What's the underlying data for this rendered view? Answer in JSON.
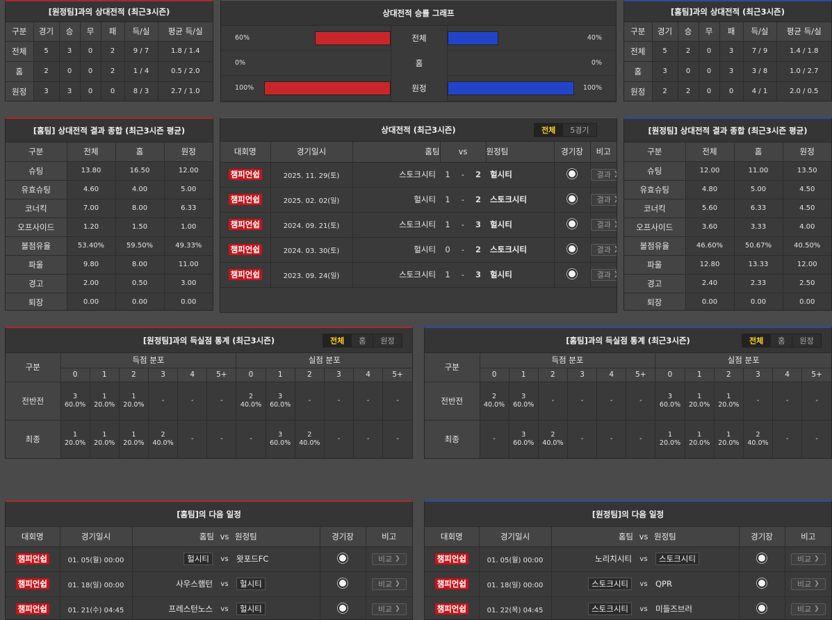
{
  "away_h2h": {
    "title": "[원정팀]과의 상대전적 (최근3시즌)",
    "headers": [
      "구분",
      "경기",
      "승",
      "무",
      "패",
      "득/실",
      "평균 득/실"
    ],
    "rows": [
      [
        "전체",
        "5",
        "3",
        "0",
        "2",
        "9 / 7",
        "1.8 / 1.4"
      ],
      [
        "홈",
        "2",
        "0",
        "0",
        "2",
        "1 / 4",
        "0.5 / 2.0"
      ],
      [
        "원정",
        "3",
        "3",
        "0",
        "0",
        "8 / 3",
        "2.7 / 1.0"
      ]
    ]
  },
  "home_h2h": {
    "title": "[홈팀]과의 상대전적 (최근3시즌)",
    "headers": [
      "구분",
      "경기",
      "승",
      "무",
      "패",
      "득/실",
      "평균 득/실"
    ],
    "rows": [
      [
        "전체",
        "5",
        "2",
        "0",
        "3",
        "7 / 9",
        "1.4 / 1.8"
      ],
      [
        "홈",
        "3",
        "0",
        "0",
        "3",
        "3 / 8",
        "1.0 / 2.7"
      ],
      [
        "원정",
        "2",
        "2",
        "0",
        "0",
        "4 / 1",
        "2.0 / 0.5"
      ]
    ]
  },
  "graph": {
    "title": "상대전적 승률 그래프",
    "colors": {
      "left": "#c9262b",
      "right": "#2245c8"
    },
    "rows": [
      {
        "label": "전체",
        "left_pct": 60,
        "right_pct": 40,
        "left_text": "60%",
        "right_text": "40%"
      },
      {
        "label": "홈",
        "left_pct": 0,
        "right_pct": 0,
        "left_text": "0%",
        "right_text": "0%"
      },
      {
        "label": "원정",
        "left_pct": 100,
        "right_pct": 100,
        "left_text": "100%",
        "right_text": "100%"
      }
    ]
  },
  "home_summary": {
    "title": "[홈팀] 상대전적 결과 종합 (최근3시즌 평균)",
    "headers": [
      "구분",
      "전체",
      "홈",
      "원정"
    ],
    "rows": [
      [
        "슈팅",
        "13.80",
        "16.50",
        "12.00"
      ],
      [
        "유효슈팅",
        "4.60",
        "4.00",
        "5.00"
      ],
      [
        "코너킥",
        "7.00",
        "8.00",
        "6.33"
      ],
      [
        "오프사이드",
        "1.20",
        "1.50",
        "1.00"
      ],
      [
        "볼점유율",
        "53.40%",
        "59.50%",
        "49.33%"
      ],
      [
        "파울",
        "9.80",
        "8.00",
        "11.00"
      ],
      [
        "경고",
        "2.00",
        "0.50",
        "3.00"
      ],
      [
        "퇴장",
        "0.00",
        "0.00",
        "0.00"
      ]
    ]
  },
  "away_summary": {
    "title": "[원정팀] 상대전적 결과 종합 (최근3시즌 평균)",
    "headers": [
      "구분",
      "전체",
      "홈",
      "원정"
    ],
    "rows": [
      [
        "슈팅",
        "12.00",
        "11.00",
        "13.50"
      ],
      [
        "유효슈팅",
        "4.80",
        "5.00",
        "4.50"
      ],
      [
        "코너킥",
        "5.60",
        "6.33",
        "4.50"
      ],
      [
        "오프사이드",
        "3.60",
        "3.33",
        "4.00"
      ],
      [
        "볼점유율",
        "46.60%",
        "50.67%",
        "40.50%"
      ],
      [
        "파울",
        "12.80",
        "13.33",
        "12.00"
      ],
      [
        "경고",
        "2.40",
        "2.33",
        "2.50"
      ],
      [
        "퇴장",
        "0.00",
        "0.00",
        "0.00"
      ]
    ]
  },
  "matches": {
    "title": "상대전적 (최근3시즌)",
    "tabs": [
      "전체",
      "5경기"
    ],
    "headers": {
      "league": "대회명",
      "date": "경기일시",
      "home": "홈팀",
      "vs": "vs",
      "away": "원정팀",
      "venue": "경기장",
      "note": "비고"
    },
    "result_btn": "결과",
    "rows": [
      {
        "league": "챔피언쉽",
        "date": "2025. 11. 29(토)",
        "home": "스토크시티",
        "hs": "1",
        "as": "2",
        "away": "헐시티",
        "winner": "away"
      },
      {
        "league": "챔피언쉽",
        "date": "2025. 02. 02(일)",
        "home": "헐시티",
        "hs": "1",
        "as": "2",
        "away": "스토크시티",
        "winner": "away"
      },
      {
        "league": "챔피언쉽",
        "date": "2024. 09. 21(토)",
        "home": "스토크시티",
        "hs": "1",
        "as": "3",
        "away": "헐시티",
        "winner": "away"
      },
      {
        "league": "챔피언쉽",
        "date": "2024. 03. 30(토)",
        "home": "헐시티",
        "hs": "0",
        "as": "2",
        "away": "스토크시티",
        "winner": "away"
      },
      {
        "league": "챔피언쉽",
        "date": "2023. 09. 24(일)",
        "home": "스토크시티",
        "hs": "1",
        "as": "3",
        "away": "헐시티",
        "winner": "away"
      }
    ]
  },
  "goal_away": {
    "title": "[원정팀]과의 득실점 통계 (최근3시즌)",
    "tabs": [
      "전체",
      "홈",
      "원정"
    ],
    "label": "구분",
    "scored": "득점 분포",
    "conceded": "실점 분포",
    "cols": [
      "0",
      "1",
      "2",
      "3",
      "4",
      "5+"
    ],
    "rows": [
      {
        "label": "전반전",
        "cells": [
          [
            "3",
            "60.0%"
          ],
          [
            "1",
            "20.0%"
          ],
          [
            "1",
            "20.0%"
          ],
          [
            "-"
          ],
          [
            "-"
          ],
          [
            "-"
          ],
          [
            "2",
            "40.0%"
          ],
          [
            "3",
            "60.0%"
          ],
          [
            "-"
          ],
          [
            "-"
          ],
          [
            "-"
          ],
          [
            "-"
          ]
        ]
      },
      {
        "label": "최종",
        "cells": [
          [
            "1",
            "20.0%"
          ],
          [
            "1",
            "20.0%"
          ],
          [
            "1",
            "20.0%"
          ],
          [
            "2",
            "40.0%"
          ],
          [
            "-"
          ],
          [
            "-"
          ],
          [
            "-"
          ],
          [
            "3",
            "60.0%"
          ],
          [
            "2",
            "40.0%"
          ],
          [
            "-"
          ],
          [
            "-"
          ],
          [
            "-"
          ]
        ]
      }
    ]
  },
  "goal_home": {
    "title": "[홈팀]과의 득실점 통계 (최근3시즌)",
    "tabs": [
      "전체",
      "홈",
      "원정"
    ],
    "label": "구분",
    "scored": "득점 분포",
    "conceded": "실점 분포",
    "cols": [
      "0",
      "1",
      "2",
      "3",
      "4",
      "5+"
    ],
    "rows": [
      {
        "label": "전반전",
        "cells": [
          [
            "2",
            "40.0%"
          ],
          [
            "3",
            "60.0%"
          ],
          [
            "-"
          ],
          [
            "-"
          ],
          [
            "-"
          ],
          [
            "-"
          ],
          [
            "3",
            "60.0%"
          ],
          [
            "1",
            "20.0%"
          ],
          [
            "1",
            "20.0%"
          ],
          [
            "-"
          ],
          [
            "-"
          ],
          [
            "-"
          ]
        ]
      },
      {
        "label": "최종",
        "cells": [
          [
            "-"
          ],
          [
            "3",
            "60.0%"
          ],
          [
            "2",
            "40.0%"
          ],
          [
            "-"
          ],
          [
            "-"
          ],
          [
            "-"
          ],
          [
            "1",
            "20.0%"
          ],
          [
            "1",
            "20.0%"
          ],
          [
            "1",
            "20.0%"
          ],
          [
            "2",
            "40.0%"
          ],
          [
            "-"
          ],
          [
            "-"
          ]
        ]
      }
    ]
  },
  "next_home": {
    "title": "[홈팀]의 다음 일정",
    "headers": {
      "league": "대회명",
      "date": "경기일시",
      "home": "홈팀",
      "vs": "vs",
      "away": "원정팀",
      "venue": "경기장",
      "note": "비고"
    },
    "btn": "비교",
    "rows": [
      {
        "league": "챔피언쉽",
        "date": "01. 05(월) 00:00",
        "home": "헐시티",
        "away": "왓포드FC",
        "mark": "home"
      },
      {
        "league": "챔피언쉽",
        "date": "01. 18(일) 00:00",
        "home": "사우스햄턴",
        "away": "헐시티",
        "mark": "away"
      },
      {
        "league": "챔피언쉽",
        "date": "01. 21(수) 04:45",
        "home": "프레스턴노스",
        "away": "헐시티",
        "mark": "away"
      }
    ]
  },
  "next_away": {
    "title": "[원정팀]의 다음 일정",
    "headers": {
      "league": "대회명",
      "date": "경기일시",
      "home": "홈팀",
      "vs": "vs",
      "away": "원정팀",
      "venue": "경기장",
      "note": "비고"
    },
    "btn": "비교",
    "rows": [
      {
        "league": "챔피언쉽",
        "date": "01. 05(월) 00:00",
        "home": "노리치시티",
        "away": "스토크시티",
        "mark": "away"
      },
      {
        "league": "챔피언쉽",
        "date": "01. 18(일) 00:00",
        "home": "스토크시티",
        "away": "QPR",
        "mark": "home"
      },
      {
        "league": "챔피언쉽",
        "date": "01. 22(목) 04:45",
        "home": "스토크시티",
        "away": "미들즈브러",
        "mark": "home"
      }
    ]
  }
}
